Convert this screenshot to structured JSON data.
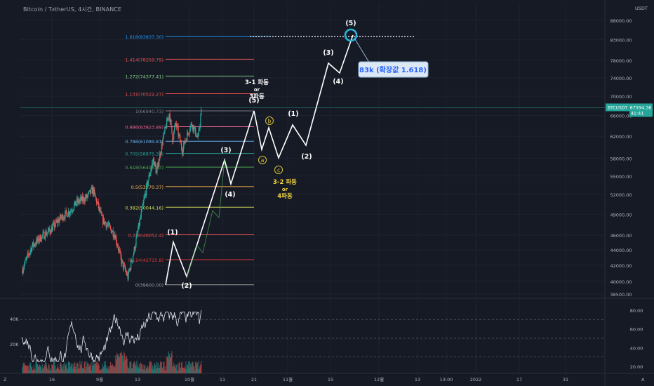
{
  "header": {
    "symbol_line": "Bitcoin / TetherUS, 4시간, BINANCE"
  },
  "corner_labels": {
    "top_right": "USDT",
    "bottom_left": "Z",
    "bottom_right": "A"
  },
  "colors": {
    "background": "#161a25",
    "up": "#26a69a",
    "down": "#ef5350",
    "wave": "#ffffff",
    "corrective": "#d9c335",
    "callout_bg": "#dce8f3",
    "callout_text": "#2962ff",
    "target_ring": "#27b5d9"
  },
  "chart_data": {
    "type": "line",
    "price_axis": {
      "ticks": [
        88000,
        83000,
        78000,
        74000,
        70000,
        66000,
        62000,
        58000,
        55000,
        52000,
        49000,
        46000,
        44000,
        42000,
        40000,
        38500
      ],
      "range": [
        38500,
        88000
      ],
      "scale": "log"
    },
    "time_axis": {
      "ticks": [
        "16",
        "9월",
        "13",
        "10월",
        "11",
        "21",
        "11월",
        "15",
        "12월",
        "13",
        "13:00",
        "2022",
        "17",
        "31"
      ]
    },
    "last_price": {
      "symbol": "BTCUSDT",
      "value": "67594.36",
      "countdown": "41:41"
    },
    "fibonacci": [
      {
        "label": "1.618(83837.30)",
        "price": 83837.3,
        "color": "#2196f3"
      },
      {
        "label": "1.414(78259.79)",
        "price": 78259.79,
        "color": "#ef5350"
      },
      {
        "label": "1.272(74377.41)",
        "price": 74377.41,
        "color": "#81c784"
      },
      {
        "label": "1.131(70522.27)",
        "price": 70522.27,
        "color": "#ef5350"
      },
      {
        "label": "1(66940.73)",
        "price": 66940.73,
        "color": "#787b86"
      },
      {
        "label": "0.886(63823.89)",
        "price": 63823.89,
        "color": "#f06292"
      },
      {
        "label": "0.786(61089.81)",
        "price": 61089.81,
        "color": "#64b5f6"
      },
      {
        "label": "0.705(58875.31)",
        "price": 58875.31,
        "color": "#26a69a"
      },
      {
        "label": "0.618(56496.57)",
        "price": 56496.57,
        "color": "#4caf50"
      },
      {
        "label": "0.5(53270.37)",
        "price": 53270.37,
        "color": "#ffb74d"
      },
      {
        "label": "0.382(50044.16)",
        "price": 50044.16,
        "color": "#d4e157"
      },
      {
        "label": "0.236(46052.4)",
        "price": 46052.4,
        "color": "#ef5350"
      },
      {
        "label": "0.114(42715.8)",
        "price": 42715.8,
        "color": "#e53935"
      },
      {
        "label": "0(39600.00)",
        "price": 39600,
        "color": "#9e9e9e"
      }
    ],
    "wave_labels": [
      {
        "text": "(1)",
        "price": 46400,
        "bar": 29
      },
      {
        "text": "(2)",
        "price": 39100,
        "bar": 33
      },
      {
        "text": "(3)",
        "price": 59500,
        "bar": 41
      },
      {
        "text": "(4)",
        "price": 53600,
        "bar": 42
      },
      {
        "text": "(5)",
        "price": 67600,
        "bar": 46
      },
      {
        "text": "(1)",
        "price": 65800,
        "bar": 53
      },
      {
        "text": "(2)",
        "price": 59000,
        "bar": 55
      },
      {
        "text": "(3)",
        "price": 79300,
        "bar": 59
      },
      {
        "text": "(4)",
        "price": 73000,
        "bar": 61
      },
      {
        "text": "(5)",
        "price": 87800,
        "bar": 63
      }
    ],
    "corrective_labels": [
      {
        "text": "a",
        "price": 58300,
        "bar": 47
      },
      {
        "text": "b",
        "price": 65700,
        "bar": 48
      },
      {
        "text": "c",
        "price": 56400,
        "bar": 50
      }
    ],
    "annotations": [
      {
        "lines": [
          "3-1 파동",
          "or",
          "3파동"
        ],
        "color": "#ffffff"
      },
      {
        "lines": [
          "3-2 파동",
          "or",
          "4파동"
        ],
        "color": "#f2d43b"
      }
    ],
    "callout": "83k (확장값 1.618)",
    "indicator": {
      "type": "volume_oscillator",
      "left_ticks": [
        "40K",
        "20K"
      ],
      "right_ticks": [
        80.0,
        60.0,
        40.0,
        20.0
      ],
      "guide_levels": [
        70,
        50,
        30
      ]
    }
  }
}
